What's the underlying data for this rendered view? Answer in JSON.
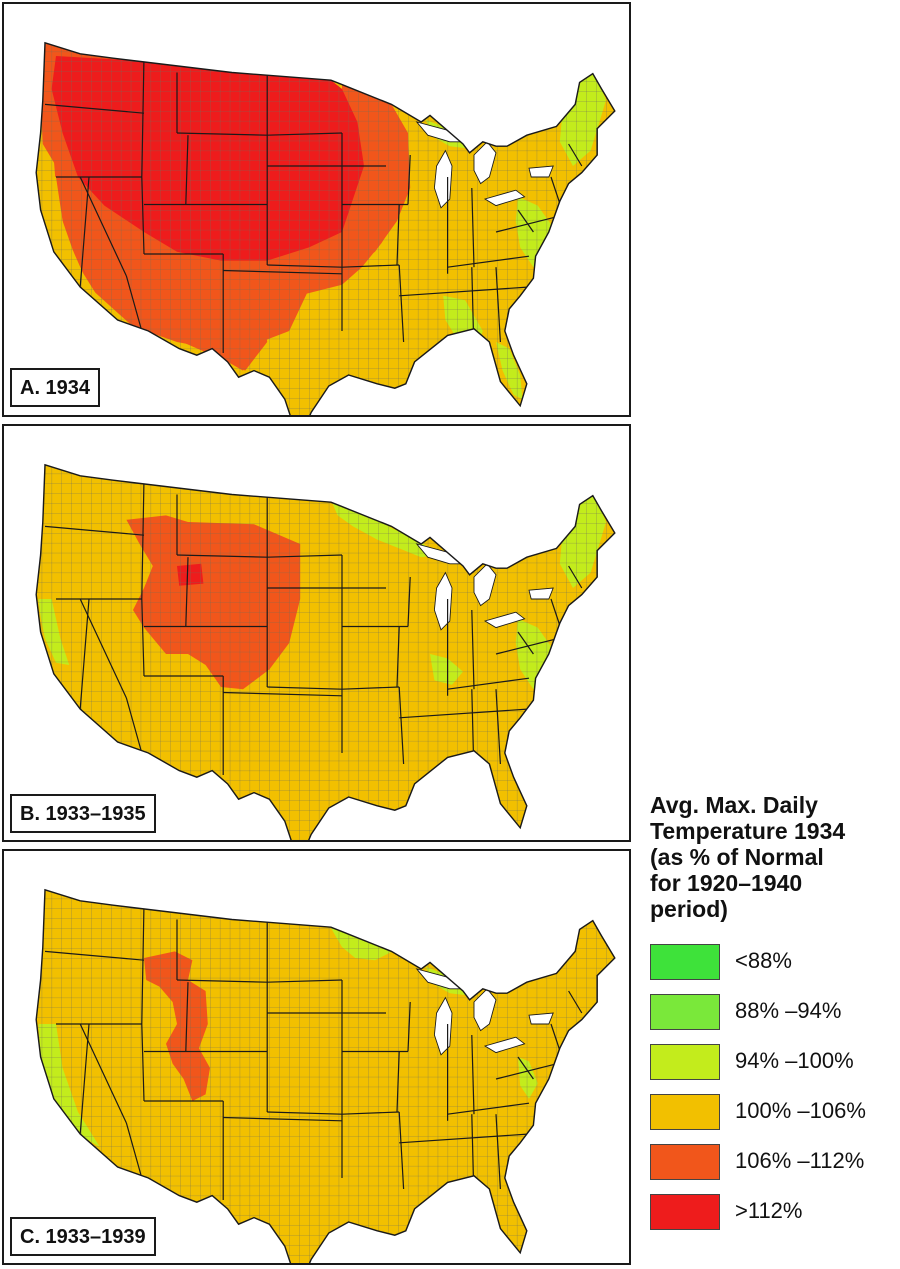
{
  "maps": [
    {
      "label": "A. 1934",
      "base_category": "c100_106",
      "regions": [
        {
          "category": "c106_112",
          "area": "west-wide"
        },
        {
          "category": "c106_112",
          "area": "pacific-northwest"
        },
        {
          "category": "c106_112",
          "area": "central-plains"
        },
        {
          "category": "c106_112",
          "area": "desert-southwest"
        },
        {
          "category": "gt112",
          "area": "northern-plains-rockies"
        },
        {
          "category": "c100_106",
          "area": "california-coast"
        },
        {
          "category": "c94_100",
          "area": "new-england"
        },
        {
          "category": "c94_100",
          "area": "mid-atlantic"
        },
        {
          "category": "c94_100",
          "area": "georgia-carolinas"
        },
        {
          "category": "c94_100",
          "area": "florida"
        },
        {
          "category": "c94_100",
          "area": "upper-michigan"
        }
      ]
    },
    {
      "label": "B. 1933–1935",
      "base_category": "c100_106",
      "regions": [
        {
          "category": "c106_112",
          "area": "wyoming-colorado"
        },
        {
          "category": "gt112",
          "area": "wyoming-core"
        },
        {
          "category": "c94_100",
          "area": "new-england"
        },
        {
          "category": "c94_100",
          "area": "upper-midwest-lakes"
        },
        {
          "category": "c94_100",
          "area": "mid-atlantic"
        },
        {
          "category": "c94_100",
          "area": "pacific-coast"
        },
        {
          "category": "c94_100",
          "area": "appalachia"
        }
      ]
    },
    {
      "label": "C. 1933–1939",
      "base_category": "c100_106",
      "regions": [
        {
          "category": "c106_112",
          "area": "wyoming-patches"
        },
        {
          "category": "c94_100",
          "area": "minnesota"
        },
        {
          "category": "c94_100",
          "area": "virginia-coast"
        },
        {
          "category": "c94_100",
          "area": "california-coast"
        },
        {
          "category": "c94_100",
          "area": "upper-michigan"
        }
      ]
    }
  ],
  "legend": {
    "title_lines": [
      "Avg. Max. Daily",
      "Temperature 1934",
      "(as % of Normal",
      "for 1920–1940",
      "period)"
    ],
    "items": [
      {
        "key": "lt88",
        "label": "<88%",
        "color": "#3ee23a"
      },
      {
        "key": "c88_94",
        "label": "88% –94%",
        "color": "#7ae83a"
      },
      {
        "key": "c94_100",
        "label": "94% –100%",
        "color": "#c3ec1c"
      },
      {
        "key": "c100_106",
        "label": "100% –106%",
        "color": "#f2c000"
      },
      {
        "key": "c106_112",
        "label": "106% –112%",
        "color": "#f1561b"
      },
      {
        "key": "gt112",
        "label": ">112%",
        "color": "#ee1c1c"
      }
    ]
  },
  "colors": {
    "county_lines": "#6e6e5a",
    "state_lines": "#1a1a1a",
    "lakes": "#ffffff"
  }
}
